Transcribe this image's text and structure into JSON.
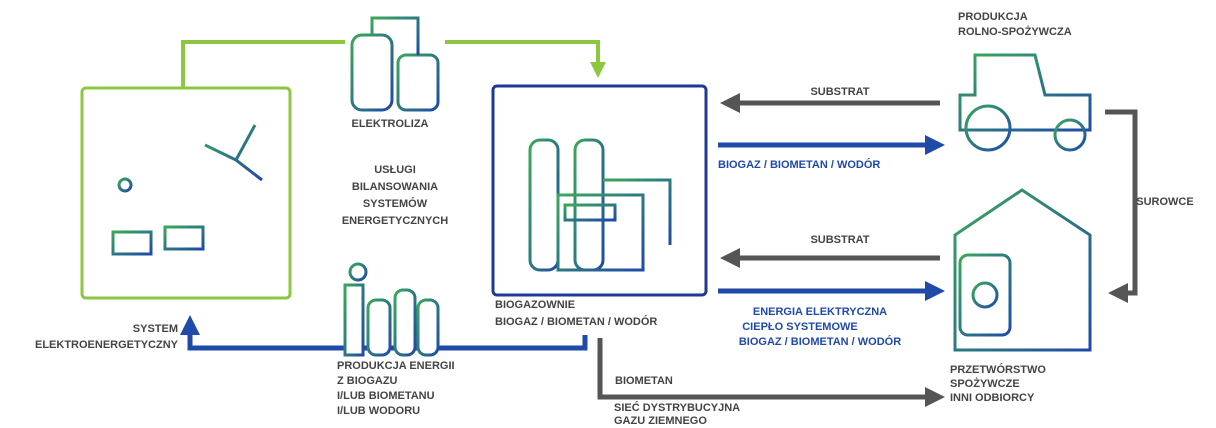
{
  "nodes": {
    "electrolysis": {
      "label": "ELEKTROLIZA"
    },
    "balancing": {
      "lines": [
        "USŁUGI",
        "BILANSOWANIA",
        "SYSTEMÓW",
        "ENERGETYCZNYCH"
      ]
    },
    "agri": {
      "lines": [
        "PRODUKCJA",
        "ROLNO-SPOŻYWCZA"
      ]
    },
    "biogas_plants": {
      "lines": [
        "BIOGAZOWNIE",
        "BIOGAZ / BIOMETAN / WODÓR"
      ]
    },
    "power_system": {
      "lines": [
        "SYSTEM",
        "ELEKTROENERGETYCZNY"
      ]
    },
    "energy_production": {
      "lines": [
        "PRODUKCJA ENERGII",
        "Z BIOGAZU",
        "I/LUB BIOMETANU",
        "I/LUB WODORU"
      ]
    },
    "processing": {
      "lines": [
        "PRZETWÓRSTWO",
        "SPOŻYWCZE",
        "INNI ODBIORCY"
      ]
    },
    "gas_grid": {
      "lines": [
        "SIEĆ DYSTRYBUCYJNA",
        "GAZU ZIEMNEGO"
      ]
    }
  },
  "edges": {
    "substrat_top": "SUBSTRAT",
    "products_top": "BIOGAZ / BIOMETAN / WODÓR",
    "raw_materials": "SUROWCE",
    "substrat_bottom": "SUBSTRAT",
    "products_bottom": [
      "ENERGIA ELEKTRYCZNA",
      "CIEPŁO SYSTEMOWE",
      "BIOGAZ / BIOMETAN / WODÓR"
    ],
    "biomethane": "BIOMETAN"
  }
}
